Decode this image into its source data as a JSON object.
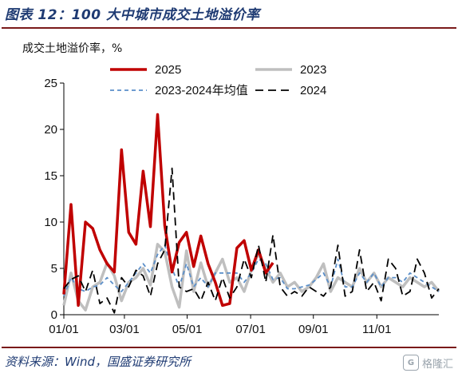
{
  "title": "图表 12：100 大中城市成交土地溢价率",
  "unit_label": "成交土地溢价率，%",
  "source": "资料来源：Wind，国盛证券研究所",
  "watermark": "格隆汇",
  "watermark_logo": "G",
  "chart_data": {
    "type": "line",
    "ylim": [
      0,
      25
    ],
    "yticks": [
      "0",
      "5",
      "10",
      "15",
      "20",
      "25"
    ],
    "xlim": [
      0,
      52
    ],
    "xticks": [
      {
        "label": "01/01",
        "x": 0
      },
      {
        "label": "03/01",
        "x": 8.4
      },
      {
        "label": "05/01",
        "x": 17.1
      },
      {
        "label": "07/01",
        "x": 25.9
      },
      {
        "label": "09/01",
        "x": 34.6
      },
      {
        "label": "11/01",
        "x": 43.4
      }
    ],
    "grid": false,
    "legend": "top",
    "series": [
      {
        "name": "2025",
        "color": "#c00000",
        "width": 3.5,
        "dash": "",
        "x": [
          0,
          1,
          2,
          3,
          4,
          5,
          6,
          7,
          8,
          9,
          10,
          11,
          12,
          13,
          14,
          15,
          16,
          17,
          18,
          19,
          20,
          21,
          22,
          23,
          24,
          25,
          26,
          27,
          28,
          29
        ],
        "y": [
          2.2,
          11.9,
          1.0,
          10.0,
          9.3,
          7.0,
          5.5,
          4.6,
          17.8,
          8.9,
          7.6,
          15.5,
          9.5,
          21.6,
          9.6,
          4.6,
          7.8,
          8.9,
          5.2,
          8.5,
          5.5,
          3.5,
          1.0,
          1.2,
          7.2,
          8.0,
          4.8,
          7.0,
          4.5,
          5.6
        ]
      },
      {
        "name": "2023",
        "color": "#bfbfbf",
        "width": 3.5,
        "dash": "",
        "x": [
          0,
          1,
          2,
          3,
          4,
          5,
          6,
          7,
          8,
          9,
          10,
          11,
          12,
          13,
          14,
          15,
          16,
          17,
          18,
          19,
          20,
          21,
          22,
          23,
          24,
          25,
          26,
          27,
          28,
          29,
          30,
          31,
          32,
          33,
          34,
          35,
          36,
          37,
          38,
          39,
          40,
          41,
          42,
          43,
          44,
          45,
          46,
          47,
          48,
          49,
          50,
          51,
          52
        ],
        "y": [
          1.0,
          4.5,
          1.5,
          0.5,
          3.0,
          3.5,
          5.6,
          4.2,
          1.5,
          3.5,
          4.0,
          5.0,
          3.2,
          7.6,
          6.8,
          3.0,
          0.8,
          6.9,
          2.5,
          5.6,
          3.0,
          4.5,
          6.0,
          3.5,
          4.0,
          2.5,
          4.8,
          6.6,
          5.0,
          3.5,
          4.5,
          3.0,
          3.5,
          2.5,
          3.0,
          4.0,
          5.5,
          2.5,
          4.0,
          3.5,
          3.0,
          5.0,
          3.5,
          4.5,
          3.0,
          4.0,
          3.5,
          3.0,
          4.0,
          3.5,
          3.0,
          3.5,
          2.5
        ]
      },
      {
        "name": "2023-2024年均值",
        "color": "#5b8fc9",
        "width": 1.8,
        "dash": "5,4",
        "x": [
          0,
          1,
          2,
          3,
          4,
          5,
          6,
          7,
          8,
          9,
          10,
          11,
          12,
          13,
          14,
          15,
          16,
          17,
          18,
          19,
          20,
          21,
          22,
          23,
          24,
          25,
          26,
          27,
          28,
          29,
          30,
          31,
          32,
          33,
          34,
          35,
          36,
          37,
          38,
          39,
          40,
          41,
          42,
          43,
          44,
          45,
          46,
          47,
          48,
          49,
          50,
          51,
          52
        ],
        "y": [
          2.0,
          4.0,
          2.8,
          2.5,
          3.0,
          3.2,
          4.0,
          3.2,
          2.5,
          3.5,
          4.5,
          5.5,
          4.5,
          6.5,
          7.5,
          5.0,
          3.0,
          5.5,
          3.0,
          4.0,
          3.0,
          4.5,
          4.5,
          4.5,
          4.5,
          3.5,
          4.5,
          6.0,
          5.5,
          3.8,
          4.0,
          2.8,
          2.8,
          3.0,
          3.2,
          3.8,
          4.5,
          3.0,
          6.0,
          3.0,
          3.0,
          4.5,
          3.5,
          4.5,
          3.0,
          4.0,
          4.0,
          3.5,
          4.5,
          4.0,
          3.5,
          3.0,
          2.5
        ]
      },
      {
        "name": "2024",
        "color": "#000000",
        "width": 1.8,
        "dash": "10,6",
        "x": [
          0,
          1,
          2,
          3,
          4,
          5,
          6,
          7,
          8,
          9,
          10,
          11,
          12,
          13,
          14,
          15,
          16,
          17,
          18,
          19,
          20,
          21,
          22,
          23,
          24,
          25,
          26,
          27,
          28,
          29,
          30,
          31,
          32,
          33,
          34,
          35,
          36,
          37,
          38,
          39,
          40,
          41,
          42,
          43,
          44,
          45,
          46,
          47,
          48,
          49,
          50,
          51,
          52
        ],
        "y": [
          2.8,
          3.8,
          4.2,
          2.5,
          4.8,
          1.2,
          1.8,
          0.2,
          4.0,
          3.0,
          4.8,
          4.2,
          2.0,
          5.5,
          7.0,
          15.8,
          3.0,
          2.5,
          2.8,
          1.5,
          3.5,
          1.5,
          4.0,
          1.8,
          3.0,
          6.0,
          4.0,
          7.5,
          3.5,
          8.6,
          3.0,
          2.0,
          2.5,
          2.0,
          3.0,
          2.5,
          2.0,
          3.0,
          7.5,
          2.0,
          2.5,
          7.0,
          2.5,
          3.5,
          1.5,
          6.0,
          5.0,
          2.0,
          2.5,
          6.0,
          4.5,
          1.8,
          2.8
        ]
      }
    ]
  }
}
